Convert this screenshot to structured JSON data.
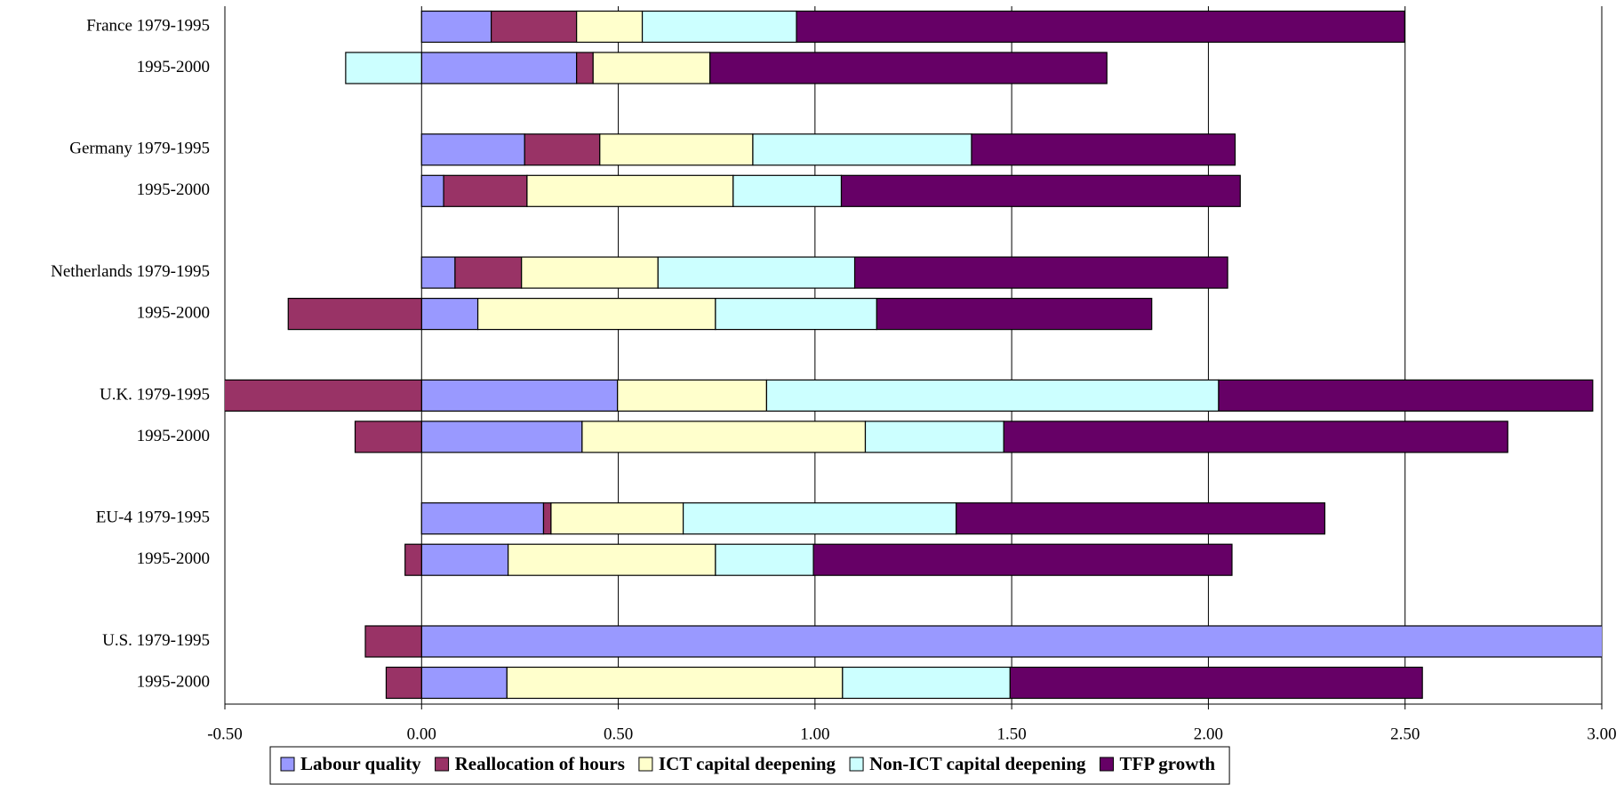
{
  "chart_data": {
    "type": "bar",
    "orientation": "horizontal",
    "stacked": true,
    "categories": [
      "France 1979-1995",
      "1995-2000",
      "Germany 1979-1995",
      "1995-2000",
      "Netherlands 1979-1995",
      "1995-2000",
      "U.K. 1979-1995",
      "1995-2000",
      "EU-4 1979-1995",
      "1995-2000",
      "U.S. 1979-1995",
      "1995-2000"
    ],
    "series": [
      {
        "name": "Labour quality",
        "color": "#9999ff",
        "values": [
          0.177,
          0.394,
          0.262,
          0.056,
          0.085,
          0.143,
          0.498,
          0.408,
          0.31,
          0.22,
          3.05,
          0.217
        ]
      },
      {
        "name": "Reallocation of hours",
        "color": "#993366",
        "values": [
          0.217,
          0.042,
          0.191,
          0.212,
          0.169,
          -0.339,
          -0.51,
          -0.169,
          0.019,
          -0.042,
          -0.143,
          -0.09
        ]
      },
      {
        "name": "ICT capital deepening",
        "color": "#ffffcc",
        "values": [
          0.167,
          0.297,
          0.389,
          0.524,
          0.347,
          0.604,
          0.379,
          0.72,
          0.336,
          0.527,
          null,
          0.853
        ]
      },
      {
        "name": "Non-ICT capital deepening",
        "color": "#ccffff",
        "values": [
          0.392,
          -0.193,
          0.556,
          0.275,
          0.5,
          0.41,
          1.149,
          0.352,
          0.694,
          0.249,
          null,
          0.426
        ]
      },
      {
        "name": "TFP growth",
        "color": "#660066",
        "values": [
          1.546,
          1.009,
          0.67,
          1.014,
          0.948,
          0.699,
          0.951,
          1.281,
          0.937,
          1.064,
          null,
          1.048
        ]
      }
    ],
    "xlim": [
      -0.5,
      3.0
    ],
    "xticks": [
      {
        "value": -0.5,
        "label": "-0.50"
      },
      {
        "value": 0,
        "label": "0.00"
      },
      {
        "value": 0.5,
        "label": "0.50"
      },
      {
        "value": 1,
        "label": "1.00"
      },
      {
        "value": 1.5,
        "label": "1.50"
      },
      {
        "value": 2,
        "label": "2.00"
      },
      {
        "value": 2.5,
        "label": "2.50"
      },
      {
        "value": 3,
        "label": "3.00"
      }
    ],
    "grid": true,
    "legend": "bottom"
  }
}
